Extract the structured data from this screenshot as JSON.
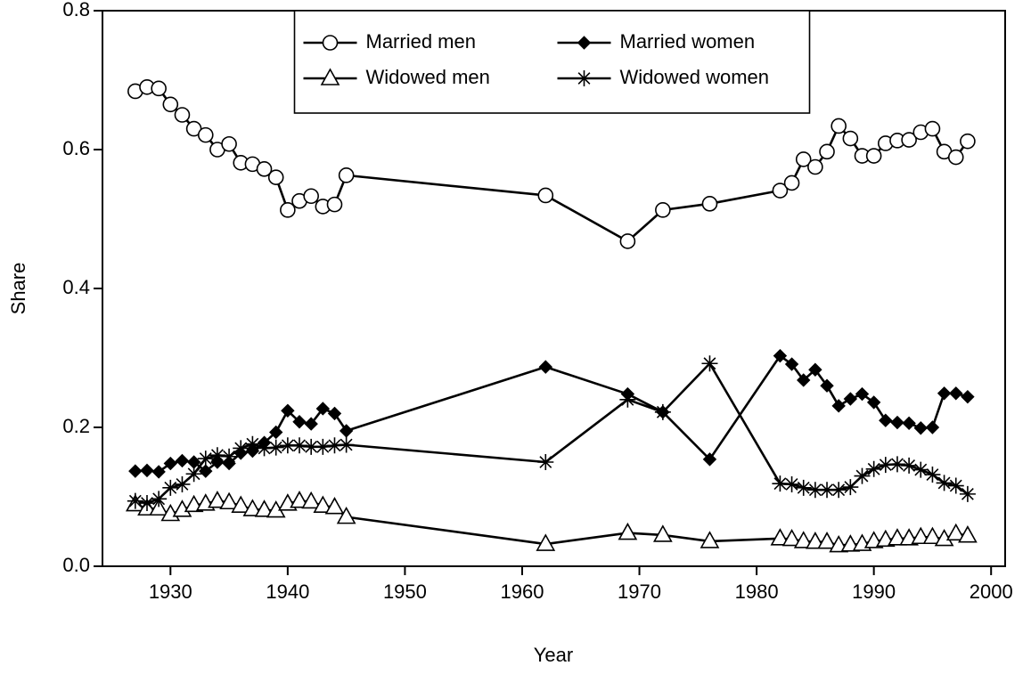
{
  "chart_data": {
    "type": "line",
    "x_label": "Year",
    "y_label": "Share",
    "x": [
      1927,
      1928,
      1929,
      1930,
      1931,
      1932,
      1933,
      1934,
      1935,
      1936,
      1937,
      1938,
      1939,
      1940,
      1941,
      1942,
      1943,
      1944,
      1945,
      1962,
      1969,
      1972,
      1976,
      1982,
      1983,
      1984,
      1985,
      1986,
      1987,
      1988,
      1989,
      1990,
      1991,
      1992,
      1993,
      1994,
      1995,
      1996,
      1997,
      1998
    ],
    "series": [
      {
        "name": "Married men",
        "color": "#000000",
        "marker": "circle",
        "values": [
          0.684,
          0.69,
          0.688,
          0.665,
          0.65,
          0.63,
          0.621,
          0.6,
          0.608,
          0.581,
          0.579,
          0.572,
          0.56,
          0.513,
          0.526,
          0.533,
          0.518,
          0.521,
          0.563,
          0.534,
          0.468,
          0.513,
          0.522,
          0.541,
          0.552,
          0.586,
          0.575,
          0.597,
          0.634,
          0.616,
          0.591,
          0.591,
          0.609,
          0.613,
          0.614,
          0.625,
          0.63,
          0.597,
          0.589,
          0.612
        ]
      },
      {
        "name": "Married women",
        "color": "#000000",
        "marker": "diamond",
        "values": [
          0.137,
          0.138,
          0.136,
          0.148,
          0.152,
          0.15,
          0.137,
          0.15,
          0.148,
          0.163,
          0.166,
          0.178,
          0.193,
          0.224,
          0.208,
          0.205,
          0.227,
          0.22,
          0.195,
          0.287,
          0.248,
          0.222,
          0.154,
          0.303,
          0.291,
          0.268,
          0.283,
          0.26,
          0.231,
          0.241,
          0.248,
          0.236,
          0.21,
          0.207,
          0.206,
          0.199,
          0.2,
          0.249,
          0.249,
          0.244
        ]
      },
      {
        "name": "Widowed men",
        "color": "#000000",
        "marker": "triangle",
        "values": [
          0.089,
          0.083,
          0.083,
          0.075,
          0.081,
          0.088,
          0.09,
          0.094,
          0.092,
          0.087,
          0.082,
          0.081,
          0.08,
          0.09,
          0.094,
          0.093,
          0.087,
          0.085,
          0.071,
          0.032,
          0.048,
          0.045,
          0.036,
          0.04,
          0.039,
          0.036,
          0.035,
          0.035,
          0.03,
          0.031,
          0.032,
          0.036,
          0.038,
          0.04,
          0.04,
          0.042,
          0.042,
          0.039,
          0.047,
          0.044
        ]
      },
      {
        "name": "Widowed women",
        "color": "#000000",
        "marker": "asterisk",
        "values": [
          0.094,
          0.091,
          0.097,
          0.113,
          0.118,
          0.133,
          0.155,
          0.16,
          0.158,
          0.17,
          0.176,
          0.17,
          0.171,
          0.174,
          0.174,
          0.172,
          0.172,
          0.174,
          0.175,
          0.15,
          0.24,
          0.222,
          0.292,
          0.119,
          0.118,
          0.113,
          0.11,
          0.11,
          0.11,
          0.114,
          0.13,
          0.14,
          0.146,
          0.147,
          0.145,
          0.139,
          0.132,
          0.12,
          0.116,
          0.104
        ]
      }
    ],
    "xlim": [
      1924.2,
      2001.2
    ],
    "ylim": [
      0,
      0.8
    ],
    "xticks": [
      1930,
      1940,
      1950,
      1960,
      1970,
      1980,
      1990,
      2000
    ],
    "yticks": [
      {
        "value": 0,
        "label": "0.0"
      },
      0.2,
      0.4,
      0.6,
      0.8
    ],
    "legend": "top"
  }
}
